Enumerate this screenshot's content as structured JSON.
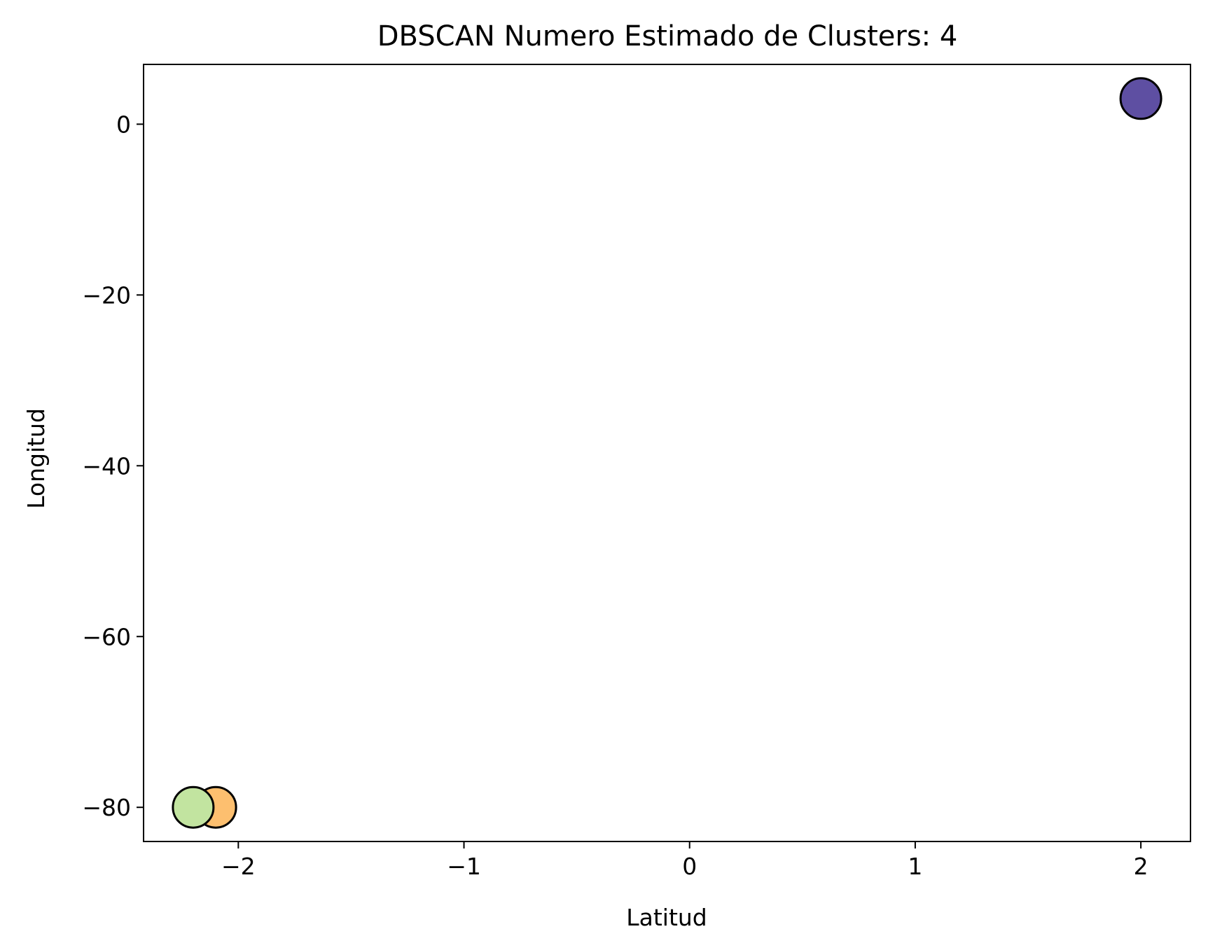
{
  "chart_data": {
    "type": "scatter",
    "title": "DBSCAN Numero Estimado de Clusters: 4",
    "xlabel": "Latitud",
    "ylabel": "Longitud",
    "xlim": [
      -2.42,
      2.22
    ],
    "ylim": [
      -84.0,
      7.0
    ],
    "xticks": [
      -2,
      -1,
      0,
      1,
      2
    ],
    "xtick_labels": [
      "−2",
      "−1",
      "0",
      "1",
      "2"
    ],
    "yticks": [
      0,
      -20,
      -40,
      -60,
      -80
    ],
    "ytick_labels": [
      "0",
      "−20",
      "−40",
      "−60",
      "−80"
    ],
    "grid": false,
    "points": [
      {
        "x": 2.0,
        "y": 3.0,
        "color": "#5e4fa2"
      },
      {
        "x": -2.1,
        "y": -80.0,
        "color": "#fdbf6f"
      },
      {
        "x": -2.2,
        "y": -80.0,
        "color": "#c2e4a0"
      }
    ]
  }
}
